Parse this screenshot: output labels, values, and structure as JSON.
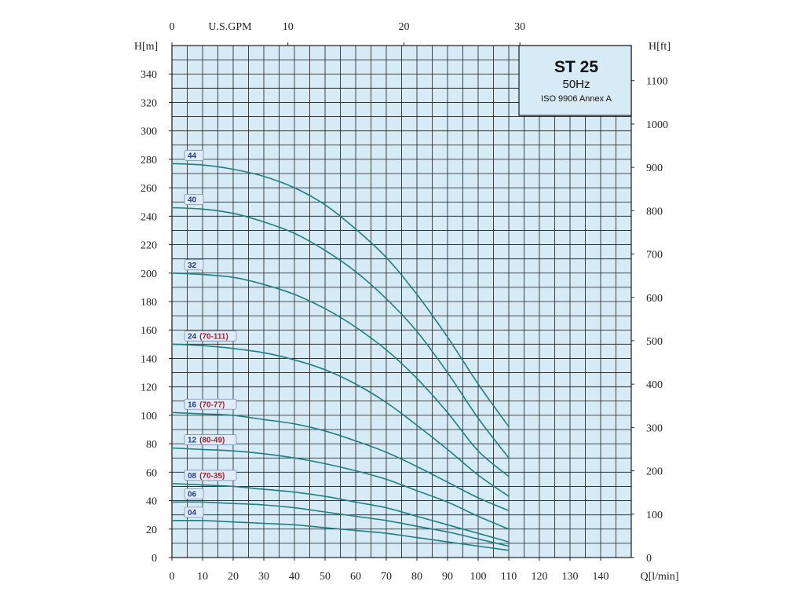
{
  "chart_data": {
    "type": "line",
    "title": "ST 25",
    "info_lines": [
      "50Hz",
      "ISO 9906 Annex A"
    ],
    "x_bottom": {
      "label": "Q[l/min]",
      "ticks": [
        0,
        10,
        20,
        30,
        40,
        50,
        60,
        70,
        80,
        90,
        100,
        110,
        120,
        130,
        140
      ],
      "range": [
        0,
        150
      ]
    },
    "x_top": {
      "label": "U.S.GPM",
      "ticks": [
        0,
        10,
        20,
        30
      ],
      "range": [
        0,
        39.6
      ]
    },
    "y_left": {
      "label": "H[m]",
      "ticks": [
        0,
        20,
        40,
        60,
        80,
        100,
        120,
        140,
        160,
        180,
        200,
        220,
        240,
        260,
        280,
        300,
        320,
        340
      ],
      "range": [
        0,
        360
      ]
    },
    "y_right": {
      "label": "H[ft]",
      "ticks": [
        0,
        100,
        200,
        300,
        400,
        500,
        600,
        700,
        800,
        900,
        1000,
        1100
      ],
      "range": [
        0,
        1181
      ]
    },
    "grid": true,
    "series": [
      {
        "name": "44",
        "code": "44",
        "note": "",
        "x": [
          0,
          10,
          20,
          30,
          40,
          50,
          60,
          70,
          80,
          90,
          100,
          110
        ],
        "y": [
          277,
          276,
          273,
          268,
          260,
          248,
          231,
          211,
          185,
          155,
          122,
          92
        ]
      },
      {
        "name": "40",
        "code": "40",
        "note": "",
        "x": [
          0,
          10,
          20,
          30,
          40,
          50,
          60,
          70,
          80,
          90,
          100,
          110
        ],
        "y": [
          246,
          245,
          242,
          236,
          228,
          216,
          201,
          182,
          159,
          130,
          98,
          70
        ]
      },
      {
        "name": "32",
        "code": "32",
        "note": "",
        "x": [
          0,
          10,
          20,
          30,
          40,
          50,
          60,
          70,
          80,
          90,
          100,
          110
        ],
        "y": [
          200,
          199,
          197,
          192,
          185,
          175,
          162,
          146,
          126,
          102,
          75,
          57
        ]
      },
      {
        "name": "24 (70-111)",
        "code": "24",
        "note": "(70-111)",
        "x": [
          0,
          10,
          20,
          30,
          40,
          50,
          60,
          70,
          80,
          90,
          100,
          110
        ],
        "y": [
          150,
          149,
          147,
          144,
          139,
          132,
          122,
          109,
          93,
          76,
          58,
          43
        ]
      },
      {
        "name": "16 (70-77)",
        "code": "16",
        "note": "(70-77)",
        "x": [
          0,
          10,
          20,
          30,
          40,
          50,
          60,
          70,
          80,
          90,
          100,
          110
        ],
        "y": [
          102,
          101,
          100,
          97,
          94,
          89,
          82,
          74,
          64,
          53,
          42,
          33
        ]
      },
      {
        "name": "12 (80-49)",
        "code": "12",
        "note": "(80-49)",
        "x": [
          0,
          10,
          20,
          30,
          40,
          50,
          60,
          70,
          80,
          90,
          100,
          110
        ],
        "y": [
          77,
          76,
          75,
          73,
          70,
          66,
          61,
          55,
          47,
          39,
          29,
          20
        ]
      },
      {
        "name": "08 (70-35)",
        "code": "08",
        "note": "(70-35)",
        "x": [
          0,
          10,
          20,
          30,
          40,
          50,
          60,
          70,
          80,
          90,
          100,
          110
        ],
        "y": [
          52,
          51,
          50,
          48,
          46,
          43,
          39,
          35,
          29,
          23,
          17,
          11
        ]
      },
      {
        "name": "06",
        "code": "06",
        "note": "",
        "x": [
          0,
          10,
          20,
          30,
          40,
          50,
          60,
          70,
          80,
          90,
          100,
          110
        ],
        "y": [
          39,
          39,
          38,
          37,
          35,
          32,
          29,
          26,
          22,
          18,
          13,
          8
        ]
      },
      {
        "name": "04",
        "code": "04",
        "note": "",
        "x": [
          0,
          10,
          20,
          30,
          40,
          50,
          60,
          70,
          80,
          90,
          100,
          110
        ],
        "y": [
          26,
          26,
          25,
          24,
          23,
          21,
          19,
          17,
          14,
          11,
          8,
          5
        ]
      }
    ],
    "colors": {
      "plot_background": "#d6ebf5",
      "grid": "#1a1a1a",
      "curve": "#1f7f82",
      "label_box": "#e0ecfb",
      "label_code": "#1f3f8a",
      "label_note": "#a3222a",
      "info_box": "#d6ebf5"
    }
  }
}
